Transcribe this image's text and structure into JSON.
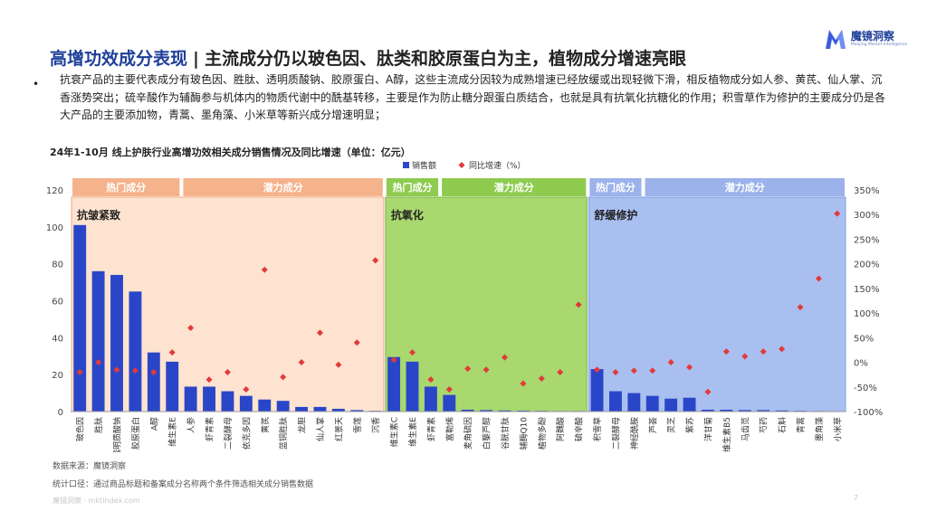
{
  "title": {
    "accent": "高增功效成分表现",
    "separator": "|",
    "main": "主流成分仍以玻色因、肽类和胶原蛋白为主，植物成分增速亮眼"
  },
  "logo": {
    "name_cn": "魔镜洞察",
    "name_en": "Moojing Market Intelligence",
    "brand_color": "#1f3f99"
  },
  "summary": "抗衰产品的主要代表成分有玻色因、胜肽、透明质酸钠、胶原蛋白、A醇，这些主流成分因较为成熟增速已经放缓或出现轻微下滑，相反植物成分如人参、黄芪、仙人掌、沉香涨势突出；硫辛酸作为辅酶参与机体内的物质代谢中的酰基转移，主要是作为防止糖分跟蛋白质结合，也就是具有抗氧化抗糖化的作用；积雪草作为修护的主要成分仍是各大产品的主要添加物，青蒿、墨角藻、小米草等新兴成分增速明显；",
  "chart_title": "24年1-10月 线上护肤行业高增功效相关成分销售情况及同比增速（单位：亿元）",
  "chart_data": {
    "type": "bar",
    "categories": [
      "玻色因",
      "胜肽",
      "透明质酸钠",
      "胶原蛋白",
      "A醇",
      "维生素E",
      "人参",
      "虾青素",
      "二裂酵母",
      "依克多因",
      "黄芪",
      "蓝铜胜肽",
      "龙胆",
      "仙人掌",
      "红景天",
      "雪莲",
      "沉香",
      "维生素C",
      "维生素E",
      "虾青素",
      "富勒烯",
      "麦角硫因",
      "白藜芦醇",
      "谷胱甘肽",
      "辅酶Q10",
      "植物多酚",
      "阿魏酸",
      "硫辛酸",
      "积雪草",
      "二裂酵母",
      "神经酰胺",
      "芦荟",
      "灵芝",
      "紫苏",
      "洋甘菊",
      "维生素B5",
      "马齿苋",
      "芍药",
      "石斛",
      "青蒿",
      "墨角藻",
      "小米草"
    ],
    "series": [
      {
        "name": "销售额",
        "axis": "left",
        "color": "#2a46c8",
        "values": [
          101,
          76,
          74,
          65,
          32,
          27,
          13.5,
          13.5,
          11,
          8.5,
          6.5,
          5.8,
          2.5,
          2.5,
          1.5,
          0.8,
          0.4,
          29.5,
          27,
          13.5,
          9,
          1,
          0.8,
          0.6,
          0.5,
          0.4,
          0.3,
          0.3,
          23,
          11,
          10,
          8.5,
          7,
          7.5,
          1,
          1,
          0.8,
          0.8,
          0.6,
          0.4,
          0.3,
          0.2
        ]
      },
      {
        "name": "同比增速（%）",
        "axis": "right",
        "color": "#e23a3a",
        "values": [
          -20,
          0,
          -15,
          -17,
          -20,
          20,
          70,
          -35,
          -20,
          -55,
          188,
          -30,
          0,
          60,
          -5,
          40,
          207,
          5,
          20,
          -35,
          -55,
          -13,
          -15,
          10,
          -43,
          -33,
          -20,
          117,
          -15,
          -20,
          -17,
          -17,
          0,
          -10,
          -60,
          22,
          12,
          22,
          27,
          112,
          170,
          302
        ]
      }
    ],
    "ylim_left": [
      0,
      120
    ],
    "yticks_left": [
      "0",
      "20",
      "40",
      "60",
      "80",
      "100",
      "120"
    ],
    "ylim_right": [
      -100,
      350
    ],
    "yticks_right": [
      "-100%",
      "-50%",
      "0%",
      "50%",
      "100%",
      "150%",
      "200%",
      "250%",
      "300%",
      "350%"
    ],
    "groups": [
      {
        "label": "抗皱紧致",
        "start": 0,
        "end": 16,
        "bg": "#fde3d0",
        "border": "#f0a882",
        "bands": [
          {
            "label": "热门成分",
            "start": 0,
            "end": 5,
            "color": "#f5b38c"
          },
          {
            "label": "潜力成分",
            "start": 6,
            "end": 16,
            "color": "#f5b38c"
          }
        ]
      },
      {
        "label": "抗氧化",
        "start": 17,
        "end": 27,
        "bg": "#a8d86e",
        "border": "#7cb342",
        "bands": [
          {
            "label": "热门成分",
            "start": 17,
            "end": 19,
            "color": "#8ecb4f"
          },
          {
            "label": "潜力成分",
            "start": 20,
            "end": 27,
            "color": "#8ecb4f"
          }
        ]
      },
      {
        "label": "舒缓修护",
        "start": 28,
        "end": 41,
        "bg": "#a9bff0",
        "border": "#7d9be0",
        "bands": [
          {
            "label": "热门成分",
            "start": 28,
            "end": 30,
            "color": "#9bb2ea"
          },
          {
            "label": "潜力成分",
            "start": 31,
            "end": 41,
            "color": "#9bb2ea"
          }
        ]
      }
    ],
    "legend": {
      "placement": "top-center"
    },
    "grid": false
  },
  "source": "数据来源：魔镜洞察",
  "note": "统计口径：通过商品标题和备案成分名称两个条件筛选相关成分销售数据",
  "footer": "魔镜洞察 · mktindex.com",
  "page_number": "7"
}
